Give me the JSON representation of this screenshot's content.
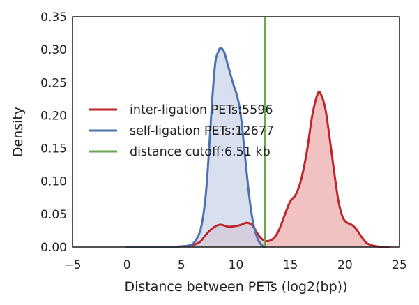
{
  "chart_data": {
    "type": "area",
    "title": "",
    "xlabel": "Distance between PETs (log2(bp))",
    "ylabel": "Density",
    "xlim": [
      -5,
      25
    ],
    "ylim": [
      0,
      0.35
    ],
    "xticks": [
      "−5",
      "0",
      "5",
      "10",
      "15",
      "20",
      "25"
    ],
    "yticks": [
      "0.00",
      "0.05",
      "0.10",
      "0.15",
      "0.20",
      "0.25",
      "0.30",
      "0.35"
    ],
    "grid": false,
    "legend_position": "center-left",
    "series": [
      {
        "name": "inter-ligation PETs:5596",
        "kind": "density",
        "color": "#c0252b",
        "fill": "#ecaaaa",
        "points": [
          [
            0,
            0.0
          ],
          [
            2,
            0.0
          ],
          [
            4,
            0.0
          ],
          [
            5,
            0.001
          ],
          [
            6,
            0.003
          ],
          [
            6.7,
            0.008
          ],
          [
            7.2,
            0.018
          ],
          [
            7.8,
            0.028
          ],
          [
            8.5,
            0.034
          ],
          [
            9.3,
            0.031
          ],
          [
            10,
            0.032
          ],
          [
            10.5,
            0.034
          ],
          [
            11,
            0.037
          ],
          [
            11.5,
            0.033
          ],
          [
            12,
            0.02
          ],
          [
            12.4,
            0.012
          ],
          [
            12.9,
            0.009
          ],
          [
            13.5,
            0.014
          ],
          [
            14,
            0.028
          ],
          [
            14.5,
            0.05
          ],
          [
            15,
            0.07
          ],
          [
            15.5,
            0.08
          ],
          [
            16,
            0.104
          ],
          [
            16.5,
            0.145
          ],
          [
            17,
            0.2
          ],
          [
            17.5,
            0.233
          ],
          [
            17.8,
            0.232
          ],
          [
            18.2,
            0.21
          ],
          [
            18.6,
            0.165
          ],
          [
            19,
            0.115
          ],
          [
            19.4,
            0.07
          ],
          [
            19.8,
            0.045
          ],
          [
            20.2,
            0.037
          ],
          [
            20.6,
            0.034
          ],
          [
            21,
            0.028
          ],
          [
            21.5,
            0.016
          ],
          [
            22,
            0.006
          ],
          [
            22.6,
            0.002
          ],
          [
            23.5,
            0.0
          ],
          [
            24,
            0.0
          ]
        ]
      },
      {
        "name": "self-ligation PETs:12677",
        "kind": "density",
        "color": "#4c72b0",
        "fill": "#c9d3e7",
        "points": [
          [
            0,
            0.0
          ],
          [
            3,
            0.0
          ],
          [
            5,
            0.001
          ],
          [
            5.8,
            0.003
          ],
          [
            6.3,
            0.01
          ],
          [
            6.8,
            0.03
          ],
          [
            7.2,
            0.075
          ],
          [
            7.5,
            0.14
          ],
          [
            7.8,
            0.22
          ],
          [
            8.1,
            0.28
          ],
          [
            8.4,
            0.298
          ],
          [
            8.6,
            0.302
          ],
          [
            8.9,
            0.297
          ],
          [
            9.2,
            0.28
          ],
          [
            9.5,
            0.262
          ],
          [
            9.8,
            0.245
          ],
          [
            10.1,
            0.23
          ],
          [
            10.4,
            0.205
          ],
          [
            10.7,
            0.16
          ],
          [
            11,
            0.11
          ],
          [
            11.3,
            0.066
          ],
          [
            11.6,
            0.035
          ],
          [
            12,
            0.012
          ],
          [
            12.3,
            0.004
          ],
          [
            12.6,
            0.0
          ]
        ]
      },
      {
        "name": "distance cutoff:6.51 kb",
        "kind": "vline",
        "color": "#6aa84f",
        "x": 12.67
      }
    ]
  }
}
